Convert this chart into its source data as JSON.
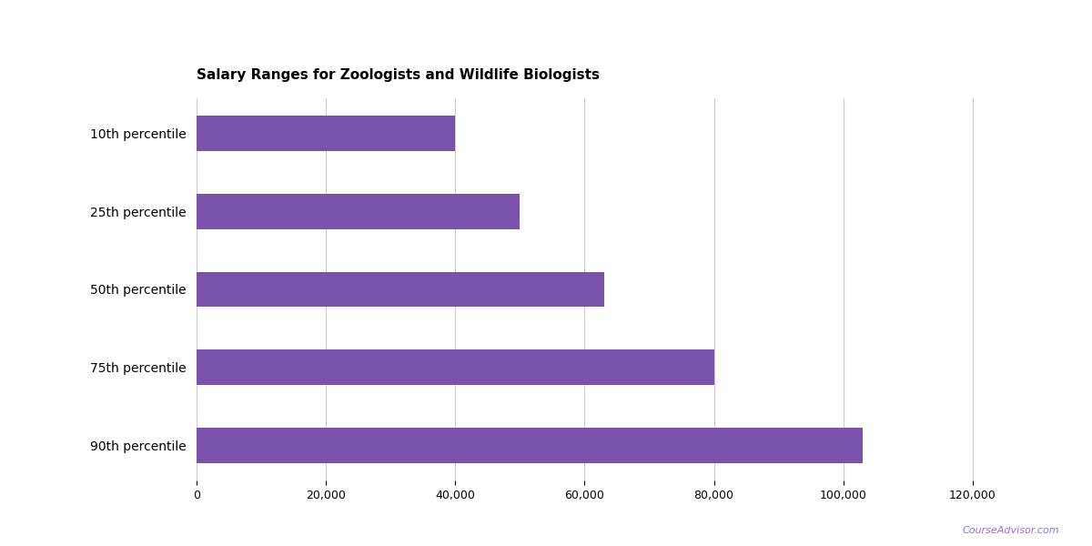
{
  "title": "Salary Ranges for Zoologists and Wildlife Biologists",
  "categories": [
    "10th percentile",
    "25th percentile",
    "50th percentile",
    "75th percentile",
    "90th percentile"
  ],
  "values": [
    40000,
    50000,
    63000,
    80000,
    103000
  ],
  "bar_color": "#7B52AB",
  "background_color": "#ffffff",
  "xlim": [
    0,
    130000
  ],
  "xticks": [
    0,
    20000,
    40000,
    60000,
    80000,
    100000,
    120000
  ],
  "grid_color": "#cccccc",
  "title_fontsize": 11,
  "tick_fontsize": 9,
  "label_fontsize": 10,
  "watermark": "CourseAdvisor.com",
  "watermark_color": "#9370DB",
  "bar_height": 0.45
}
